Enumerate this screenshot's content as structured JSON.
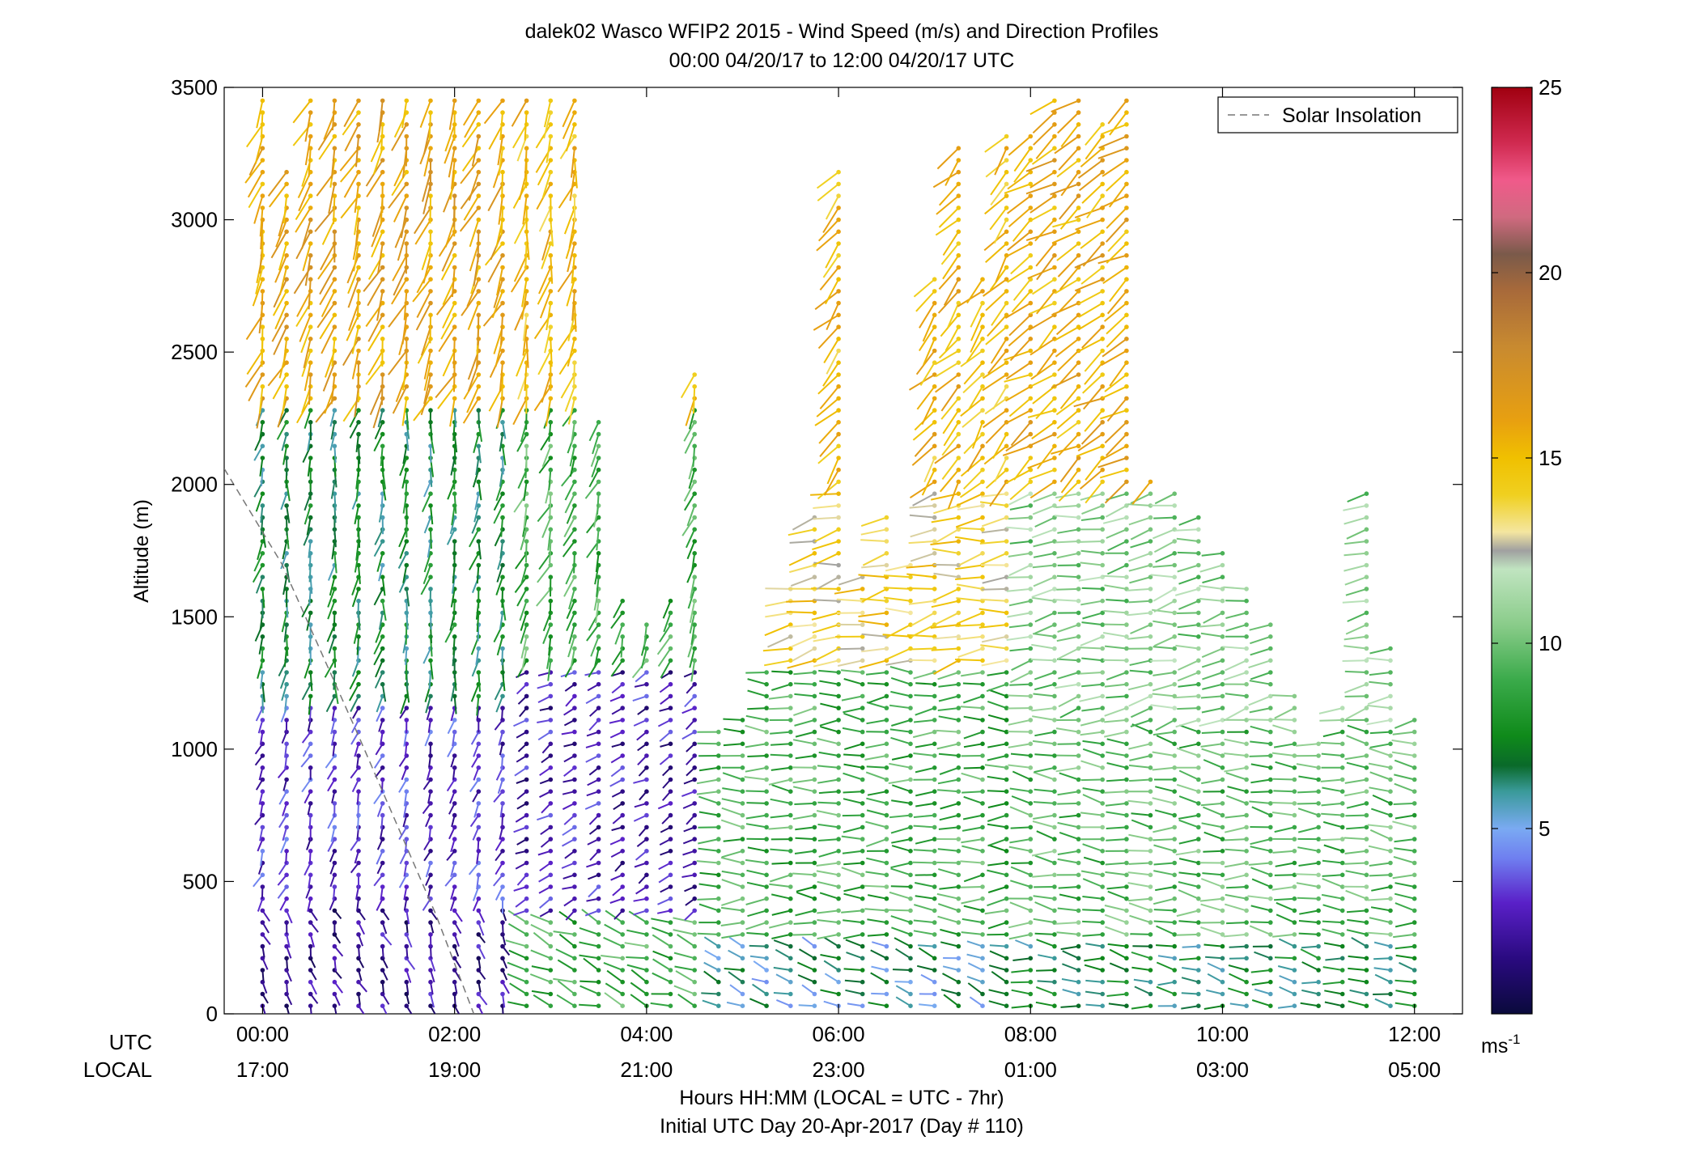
{
  "chart_data": {
    "type": "wind-barb-profile",
    "title": "dalek02 Wasco WFIP2 2015 - Wind Speed (m/s) and Direction Profiles",
    "subtitle": "00:00 04/20/17 to 12:00 04/20/17  UTC",
    "ylabel": "Altitude (m)",
    "xlabel": "Hours HH:MM  (LOCAL = UTC - 7hr)",
    "xlabel2": "Initial UTC Day 20-Apr-2017 (Day # 110)",
    "row_label_utc": "UTC",
    "row_label_local": "LOCAL",
    "x_range_hours": [
      -0.4,
      12.5
    ],
    "ylim": [
      0,
      3500
    ],
    "y_ticks": [
      0,
      500,
      1000,
      1500,
      2000,
      2500,
      3000,
      3500
    ],
    "x_ticks": [
      {
        "hour": 0,
        "utc": "00:00",
        "local": "17:00"
      },
      {
        "hour": 2,
        "utc": "02:00",
        "local": "19:00"
      },
      {
        "hour": 4,
        "utc": "04:00",
        "local": "21:00"
      },
      {
        "hour": 6,
        "utc": "06:00",
        "local": "23:00"
      },
      {
        "hour": 8,
        "utc": "08:00",
        "local": "01:00"
      },
      {
        "hour": 10,
        "utc": "10:00",
        "local": "03:00"
      },
      {
        "hour": 12,
        "utc": "12:00",
        "local": "05:00"
      }
    ],
    "legend": {
      "entries": [
        "Solar Insolation"
      ],
      "placement": "top-right"
    },
    "solar_insolation": {
      "style": "dashed",
      "color": "#777777",
      "points": [
        [
          -0.4,
          2060
        ],
        [
          0.2,
          1700
        ],
        [
          1.0,
          1050
        ],
        [
          1.8,
          380
        ],
        [
          2.2,
          0
        ]
      ]
    },
    "colorbar": {
      "label": "ms",
      "label_superscript": "-1",
      "range": [
        0,
        25
      ],
      "ticks": [
        5,
        10,
        15,
        20,
        25
      ],
      "stops": [
        {
          "v": 0,
          "c": "#0a0a3c"
        },
        {
          "v": 1.5,
          "c": "#2a0a80"
        },
        {
          "v": 3,
          "c": "#5a20c8"
        },
        {
          "v": 4.2,
          "c": "#6f7ff0"
        },
        {
          "v": 5,
          "c": "#7aaaf2"
        },
        {
          "v": 6,
          "c": "#3a9a9a"
        },
        {
          "v": 6.7,
          "c": "#0a6a2a"
        },
        {
          "v": 7.5,
          "c": "#0f8a1a"
        },
        {
          "v": 9,
          "c": "#3aaa4a"
        },
        {
          "v": 10.5,
          "c": "#8acc8a"
        },
        {
          "v": 12,
          "c": "#c0e4c0"
        },
        {
          "v": 12.5,
          "c": "#a0a0a0"
        },
        {
          "v": 13,
          "c": "#f4e6a0"
        },
        {
          "v": 14,
          "c": "#f0d020"
        },
        {
          "v": 15,
          "c": "#f0c000"
        },
        {
          "v": 16,
          "c": "#e8a010"
        },
        {
          "v": 18,
          "c": "#c88a30"
        },
        {
          "v": 19.5,
          "c": "#a86a3a"
        },
        {
          "v": 20.5,
          "c": "#7a5a4a"
        },
        {
          "v": 21.5,
          "c": "#d06a80"
        },
        {
          "v": 22.5,
          "c": "#f05a8a"
        },
        {
          "v": 23.5,
          "c": "#d02a50"
        },
        {
          "v": 25,
          "c": "#a00010"
        }
      ]
    },
    "profiles": {
      "times_hours": [
        0.0,
        0.25,
        0.5,
        0.75,
        1.0,
        1.25,
        1.5,
        1.75,
        2.0,
        2.25,
        2.5,
        2.75,
        3.0,
        3.25,
        3.5,
        3.75,
        4.0,
        4.25,
        4.5,
        4.75,
        5.0,
        5.25,
        5.5,
        5.75,
        6.0,
        6.25,
        6.5,
        6.75,
        7.0,
        7.25,
        7.5,
        7.75,
        8.0,
        8.25,
        8.5,
        8.75,
        9.0,
        9.25,
        9.5,
        9.75,
        10.0,
        10.25,
        10.5,
        10.75,
        11.0,
        11.25,
        11.5,
        11.75,
        12.0
      ],
      "top_altitude_m": [
        3470,
        3200,
        3470,
        3470,
        3470,
        3470,
        3470,
        3470,
        3470,
        3470,
        3470,
        3470,
        3470,
        3470,
        2270,
        1580,
        1510,
        1560,
        2420,
        1070,
        1150,
        1320,
        1620,
        1900,
        3200,
        1650,
        1900,
        1720,
        2800,
        3290,
        2790,
        3320,
        3320,
        3470,
        3470,
        3390,
        3470,
        2010,
        1980,
        1900,
        1760,
        1630,
        1500,
        1210,
        1040,
        1180,
        1980,
        1390,
        1110
      ],
      "speed_layers": [
        {
          "from_hour": 0.0,
          "to_hour": 2.6,
          "from_alt": 0,
          "to_alt": 400,
          "speed_ms": 2.0,
          "dir_deg": 160
        },
        {
          "from_hour": 0.0,
          "to_hour": 2.6,
          "from_alt": 400,
          "to_alt": 1200,
          "speed_ms": 3.0,
          "dir_deg": 200
        },
        {
          "from_hour": 0.0,
          "to_hour": 2.6,
          "from_alt": 1200,
          "to_alt": 2300,
          "speed_ms": 7.0,
          "dir_deg": 190
        },
        {
          "from_hour": 0.0,
          "to_hour": 2.6,
          "from_alt": 2300,
          "to_alt": 3500,
          "speed_ms": 16.0,
          "dir_deg": 200
        },
        {
          "from_hour": 2.6,
          "to_hour": 4.75,
          "from_alt": 0,
          "to_alt": 350,
          "speed_ms": 9.0,
          "dir_deg": 290
        },
        {
          "from_hour": 2.6,
          "to_hour": 4.75,
          "from_alt": 350,
          "to_alt": 1300,
          "speed_ms": 2.5,
          "dir_deg": 240
        },
        {
          "from_hour": 2.6,
          "to_hour": 4.75,
          "from_alt": 1300,
          "to_alt": 2300,
          "speed_ms": 9.0,
          "dir_deg": 200
        },
        {
          "from_hour": 2.6,
          "to_hour": 4.75,
          "from_alt": 2300,
          "to_alt": 3500,
          "speed_ms": 15.0,
          "dir_deg": 195
        },
        {
          "from_hour": 4.75,
          "to_hour": 8.0,
          "from_alt": 0,
          "to_alt": 300,
          "speed_ms": 6.0,
          "dir_deg": 290
        },
        {
          "from_hour": 4.75,
          "to_hour": 8.0,
          "from_alt": 300,
          "to_alt": 1300,
          "speed_ms": 9.0,
          "dir_deg": 270
        },
        {
          "from_hour": 4.75,
          "to_hour": 8.0,
          "from_alt": 1300,
          "to_alt": 2000,
          "speed_ms": 14.0,
          "dir_deg": 260
        },
        {
          "from_hour": 4.75,
          "to_hour": 8.0,
          "from_alt": 2000,
          "to_alt": 3500,
          "speed_ms": 15.0,
          "dir_deg": 220
        },
        {
          "from_hour": 8.0,
          "to_hour": 12.1,
          "from_alt": 0,
          "to_alt": 300,
          "speed_ms": 7.0,
          "dir_deg": 280
        },
        {
          "from_hour": 8.0,
          "to_hour": 12.1,
          "from_alt": 300,
          "to_alt": 1100,
          "speed_ms": 9.5,
          "dir_deg": 275
        },
        {
          "from_hour": 8.0,
          "to_hour": 12.1,
          "from_alt": 1100,
          "to_alt": 2000,
          "speed_ms": 10.5,
          "dir_deg": 260
        },
        {
          "from_hour": 8.0,
          "to_hour": 12.1,
          "from_alt": 2000,
          "to_alt": 3500,
          "speed_ms": 15.5,
          "dir_deg": 235
        }
      ]
    }
  }
}
